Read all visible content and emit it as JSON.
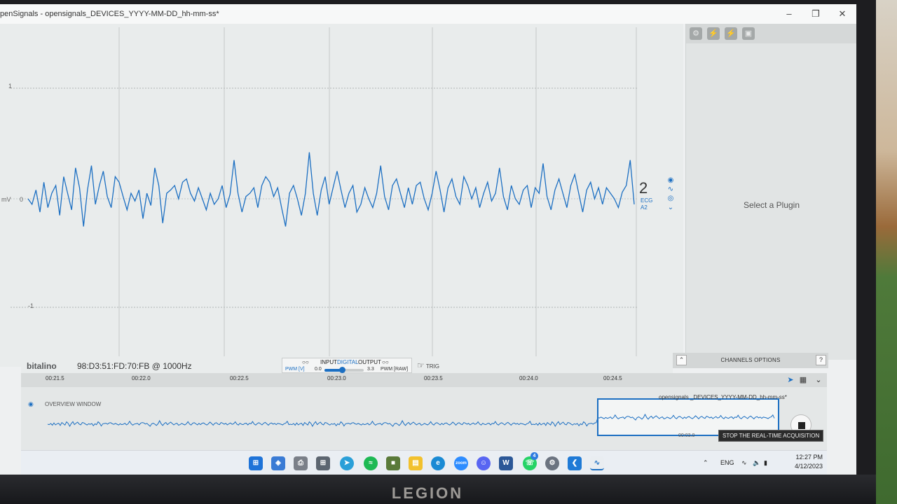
{
  "window": {
    "title": "penSignals - opensignals_DEVICES_YYYY-MM-DD_hh-mm-ss*",
    "minimize_icon": "minimize-icon",
    "maximize_icon": "restore-icon",
    "close_icon": "close-icon"
  },
  "plot": {
    "y_unit": "mV",
    "y_ticks": [
      "1",
      "0",
      "-1"
    ],
    "channel": {
      "number": "2",
      "type": "ECG",
      "port": "A2"
    },
    "channel_icons": [
      "eye-icon",
      "wave-icon",
      "target-icon",
      "chevron-down-icon"
    ],
    "signal_color": "#1c6fc2"
  },
  "chart_data": {
    "type": "line",
    "ylim": [
      -1,
      1
    ],
    "ylabel": "mV",
    "series": [
      {
        "values": [
          0.0,
          -0.05,
          0.08,
          -0.12,
          0.15,
          -0.08,
          0.05,
          0.12,
          -0.15,
          0.2,
          0.05,
          -0.1,
          0.28,
          0.1,
          -0.25,
          0.08,
          0.3,
          -0.05,
          0.12,
          0.25,
          0.02,
          -0.08,
          0.2,
          0.15,
          0.02,
          -0.1,
          0.05,
          -0.02,
          0.08,
          -0.18,
          0.05,
          -0.06,
          0.28,
          0.12,
          -0.22,
          0.05,
          0.08,
          0.12,
          0.0,
          0.15,
          0.18,
          0.05,
          -0.02,
          0.1,
          0.0,
          -0.1,
          0.05,
          -0.05,
          0.0,
          0.12,
          -0.08,
          0.04,
          0.35,
          0.05,
          -0.12,
          0.02,
          0.05,
          0.1,
          -0.08,
          0.12,
          0.2,
          0.15,
          0.02,
          0.1,
          -0.08,
          -0.25,
          0.05,
          0.12,
          0.0,
          -0.15,
          0.05,
          0.42,
          0.05,
          -0.15,
          0.08,
          0.2,
          -0.05,
          0.1,
          0.25,
          0.08,
          -0.08,
          0.05,
          0.12,
          -0.12,
          -0.05,
          0.1,
          0.0,
          -0.08,
          0.05,
          0.3,
          0.02,
          -0.1,
          0.12,
          0.18,
          0.05,
          -0.08,
          0.1,
          -0.05,
          0.12,
          0.15,
          0.0,
          -0.1,
          0.05,
          0.25,
          0.08,
          -0.12,
          0.1,
          0.18,
          0.02,
          -0.05,
          0.2,
          0.12,
          0.0,
          0.1,
          -0.08,
          0.05,
          0.15,
          -0.02,
          0.05,
          0.28,
          0.02,
          -0.1,
          0.12,
          0.0,
          -0.05,
          0.08,
          0.12,
          -0.08,
          0.1,
          0.05,
          0.32,
          0.02,
          -0.1,
          0.08,
          0.18,
          0.05,
          -0.08,
          0.12,
          0.22,
          0.05,
          -0.12,
          0.08,
          0.15,
          0.0,
          0.1,
          -0.05,
          0.1,
          0.05,
          0.0,
          -0.08,
          0.06,
          0.12,
          0.35,
          -0.05
        ]
      }
    ]
  },
  "right_panel": {
    "toolbar_icons": [
      "gear-icon",
      "plug-icon",
      "plug-add-icon",
      "image-icon"
    ],
    "placeholder": "Select a Plugin",
    "channels_options": "CHANNELS OPTIONS",
    "collapse_icon": "chevron-up-icon",
    "help_label": "?"
  },
  "status": {
    "logo": "bitalino",
    "device": "98:D3:51:FD:70:FB @ 1000Hz",
    "io_left": "INPUT",
    "io_digital": "DIGITAL",
    "io_right": "OUTPUT",
    "pwm_v": "PWM [V]",
    "pwm_min": "0.0",
    "pwm_max": "3.3",
    "pwm_value": 0.45,
    "pwm_raw": "PWM [RAW]",
    "trig": "TRIG"
  },
  "timeline": {
    "ticks": [
      "00:21.5",
      "00:22.0",
      "00:22.5",
      "00:23.0",
      "00:23.5",
      "00:24.0",
      "00:24.5"
    ]
  },
  "overview": {
    "label": "OVERVIEW WINDOW",
    "file": "opensignals _DEVICES_YYYY-MM-DD_hh-mm-ss*",
    "time": "00:03.0",
    "stop_tooltip": "STOP THE REAL-TIME ACQUISITION"
  },
  "taskbar": {
    "apps": [
      "windows-start-icon",
      "spotify-icon",
      "minecraft-icon",
      "files-icon",
      "edge-icon",
      "zoom-icon",
      "discord-icon",
      "word-icon",
      "whatsapp-icon",
      "settings-icon",
      "vscode-icon",
      "opensignals-icon"
    ],
    "whatsapp_badge": "4",
    "zoom_label": "zoom",
    "lang": "ENG",
    "time": "12:27 PM",
    "date": "4/12/2023"
  },
  "brand": "LEGION"
}
